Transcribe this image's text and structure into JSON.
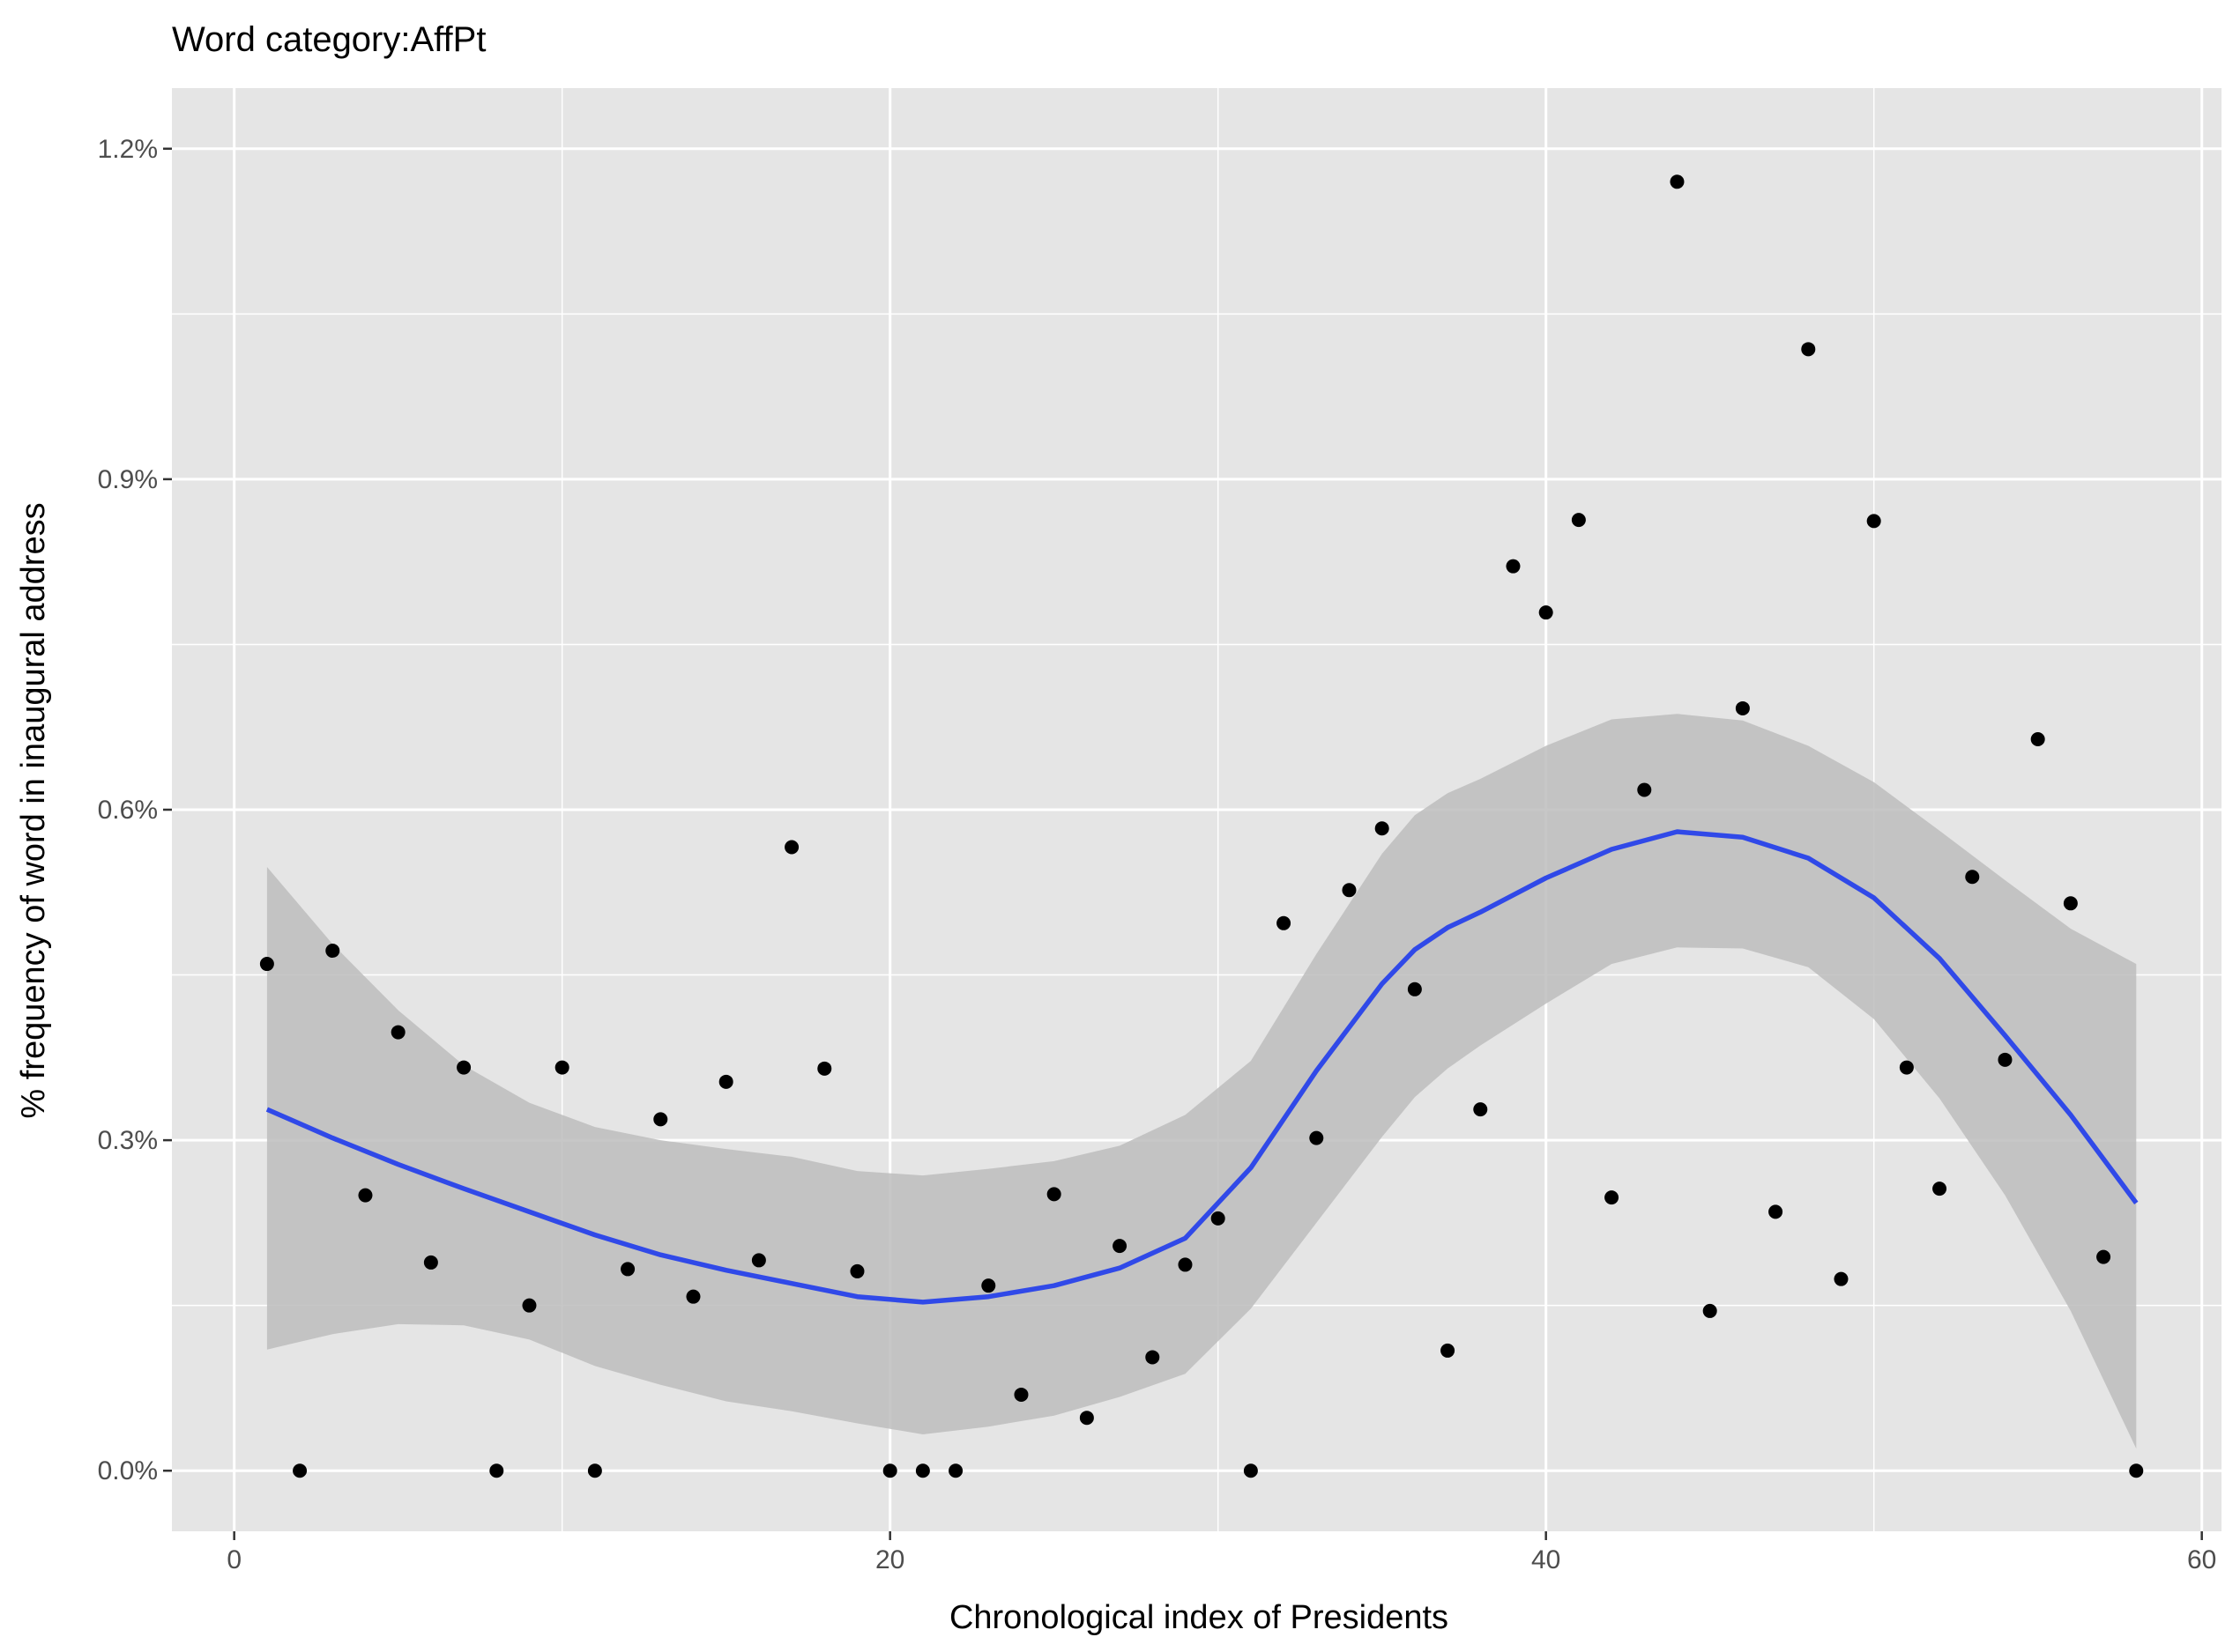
{
  "chart_data": {
    "type": "scatter",
    "title": "Word category:AffPt",
    "xlabel": "Chronological index of Presidents",
    "ylabel": "% frequency of word in inaugural address",
    "xlim": [
      -1.9,
      60.6
    ],
    "ylim": [
      -0.055,
      1.255
    ],
    "x_ticks": [
      0,
      20,
      40,
      60
    ],
    "x_tick_labels": [
      "0",
      "20",
      "40",
      "60"
    ],
    "y_ticks": [
      0.0,
      0.3,
      0.6,
      0.9,
      1.2
    ],
    "y_tick_labels": [
      "0.0%",
      "0.3%",
      "0.6%",
      "0.9%",
      "1.2%"
    ],
    "grid": true,
    "legend": "none",
    "colors": {
      "panel_bg": "#e5e5e5",
      "grid": "#ffffff",
      "points": "#000000",
      "smooth_line": "#3049e8",
      "confidence_band": "#bdbdbd"
    },
    "points": {
      "x": [
        1,
        2,
        3,
        4,
        5,
        6,
        7,
        8,
        9,
        10,
        11,
        12,
        13,
        14,
        15,
        16,
        17,
        18,
        19,
        20,
        21,
        22,
        23,
        24,
        25,
        26,
        27,
        28,
        29,
        30,
        31,
        32,
        33,
        34,
        35,
        36,
        37,
        38,
        39,
        40,
        41,
        42,
        43,
        44,
        45,
        46,
        47,
        48,
        49,
        50,
        51,
        52,
        53,
        54,
        55,
        56,
        57,
        58
      ],
      "y": [
        0.46,
        0.0,
        0.472,
        0.25,
        0.398,
        0.189,
        0.366,
        0.0,
        0.15,
        0.366,
        0.0,
        0.183,
        0.319,
        0.158,
        0.353,
        0.191,
        0.566,
        0.365,
        0.181,
        0.0,
        0.0,
        0.0,
        0.168,
        0.069,
        0.251,
        0.048,
        0.204,
        0.103,
        0.187,
        0.229,
        0.0,
        0.497,
        0.302,
        0.527,
        0.583,
        0.437,
        0.109,
        0.328,
        0.821,
        0.779,
        0.863,
        0.248,
        0.618,
        1.17,
        0.145,
        0.692,
        0.235,
        1.018,
        0.174,
        0.862,
        0.366,
        0.256,
        0.539,
        0.373,
        0.664,
        0.515,
        0.194,
        0.0
      ]
    },
    "smooth": {
      "x": [
        1,
        3,
        5,
        7,
        9,
        11,
        13,
        15,
        17,
        19,
        21,
        23,
        25,
        27,
        29,
        31,
        33,
        35,
        36,
        37,
        38,
        40,
        42,
        44,
        46,
        48,
        50,
        52,
        54,
        56,
        58
      ],
      "y": [
        0.328,
        0.302,
        0.278,
        0.256,
        0.235,
        0.214,
        0.196,
        0.182,
        0.17,
        0.158,
        0.153,
        0.158,
        0.168,
        0.184,
        0.211,
        0.275,
        0.363,
        0.442,
        0.473,
        0.493,
        0.507,
        0.538,
        0.564,
        0.58,
        0.575,
        0.556,
        0.52,
        0.465,
        0.395,
        0.323,
        0.243
      ],
      "lower": [
        0.11,
        0.124,
        0.133,
        0.132,
        0.119,
        0.095,
        0.078,
        0.063,
        0.054,
        0.043,
        0.033,
        0.04,
        0.05,
        0.067,
        0.088,
        0.147,
        0.225,
        0.303,
        0.339,
        0.365,
        0.386,
        0.424,
        0.46,
        0.475,
        0.474,
        0.457,
        0.41,
        0.338,
        0.25,
        0.145,
        0.02
      ],
      "upper": [
        0.548,
        0.478,
        0.418,
        0.368,
        0.334,
        0.312,
        0.3,
        0.292,
        0.285,
        0.272,
        0.268,
        0.274,
        0.281,
        0.295,
        0.323,
        0.372,
        0.469,
        0.56,
        0.595,
        0.615,
        0.628,
        0.658,
        0.682,
        0.687,
        0.681,
        0.658,
        0.625,
        0.581,
        0.536,
        0.492,
        0.46
      ]
    }
  }
}
